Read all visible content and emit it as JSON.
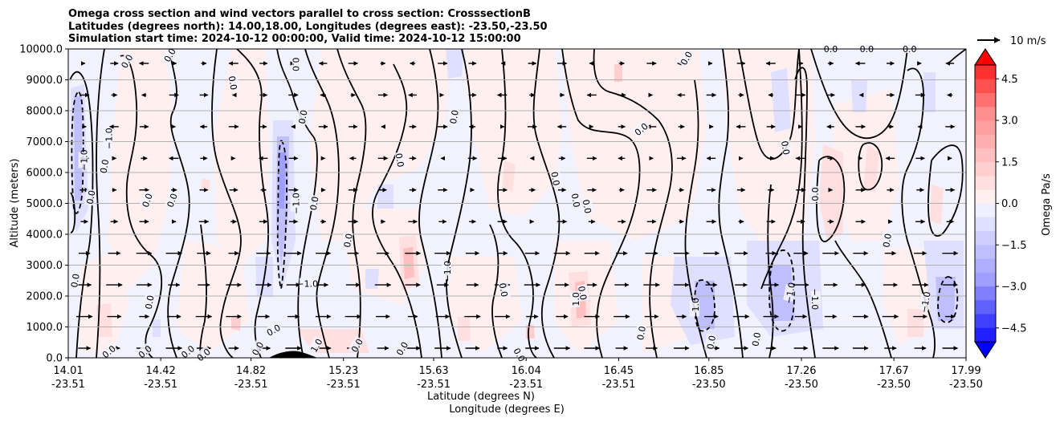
{
  "chart_data": {
    "type": "heatmap",
    "title_lines": [
      "Omega cross section and wind vectors parallel to cross section: CrosssectionB",
      "Latitudes (degrees north): 14.00,18.00, Longitudes (degrees east): -23.50,-23.50",
      "Simulation start time: 2024-10-12 00:00:00, Valid time: 2024-10-12 15:00:00"
    ],
    "ylabel": "Altitude (meters)",
    "xlabel_lines": [
      "Latitude (degrees N)",
      "Longitude (degrees E)"
    ],
    "ylim": [
      0,
      10000
    ],
    "y_ticks": [
      "0.0",
      "1000.0",
      "2000.0",
      "3000.0",
      "4000.0",
      "5000.0",
      "6000.0",
      "7000.0",
      "8000.0",
      "9000.0",
      "10000.0"
    ],
    "x_ticks": [
      {
        "lat": "14.01",
        "lon": "-23.51"
      },
      {
        "lat": "14.42",
        "lon": "-23.51"
      },
      {
        "lat": "14.82",
        "lon": "-23.51"
      },
      {
        "lat": "15.23",
        "lon": "-23.51"
      },
      {
        "lat": "15.63",
        "lon": "-23.51"
      },
      {
        "lat": "16.04",
        "lon": "-23.51"
      },
      {
        "lat": "16.45",
        "lon": "-23.51"
      },
      {
        "lat": "16.85",
        "lon": "-23.50"
      },
      {
        "lat": "17.26",
        "lon": "-23.50"
      },
      {
        "lat": "17.67",
        "lon": "-23.50"
      },
      {
        "lat": "17.99",
        "lon": "-23.50"
      }
    ],
    "xlim": [
      14.01,
      17.99
    ],
    "grid": "horizontal",
    "colorbar": {
      "label": "Omega Pa/s",
      "min": -5.0,
      "max": 5.0,
      "step": 0.5,
      "ticks": [
        "4.5",
        "3.0",
        "1.5",
        "0.0",
        "−1.5",
        "−3.0",
        "−4.5"
      ],
      "colors_positive": [
        "#ffefef",
        "#ffdfdf",
        "#ffcfcf",
        "#ffbfbf",
        "#ffafaf",
        "#ff9f9f",
        "#ff8f8f",
        "#ff7070",
        "#ff5050",
        "#ff3030"
      ],
      "colors_negative": [
        "#efefff",
        "#dfdfff",
        "#cfcfff",
        "#bfbfff",
        "#afafff",
        "#9f9fff",
        "#8080ff",
        "#6060ff",
        "#4040ff",
        "#2020ff"
      ],
      "over_color": "#ff0000",
      "under_color": "#0000ff"
    },
    "quiver_key": "10 m/s",
    "contour_labels": [
      {
        "text": "0.0",
        "lat": 14.27,
        "alt": 9600,
        "rot": -60
      },
      {
        "text": "0.0",
        "lat": 14.46,
        "alt": 9800,
        "rot": -60
      },
      {
        "text": "0.0",
        "lat": 15.02,
        "alt": 9500,
        "rot": 90
      },
      {
        "text": "0.0",
        "lat": 14.74,
        "alt": 8900,
        "rot": 80
      },
      {
        "text": "0.0",
        "lat": 15.05,
        "alt": 7800,
        "rot": -80
      },
      {
        "text": "0.0",
        "lat": 15.72,
        "alt": 7800,
        "rot": -80
      },
      {
        "text": "0.0",
        "lat": 16.55,
        "alt": 7400,
        "rot": -40
      },
      {
        "text": "0.0",
        "lat": 16.75,
        "alt": 9700,
        "rot": -60
      },
      {
        "text": "0.0",
        "lat": 17.39,
        "alt": 10000,
        "rot": 0
      },
      {
        "text": "0.0",
        "lat": 17.55,
        "alt": 10000,
        "rot": 0
      },
      {
        "text": "0.0",
        "lat": 17.74,
        "alt": 10000,
        "rot": 0
      },
      {
        "text": "0.0",
        "lat": 17.19,
        "alt": 6800,
        "rot": 80
      },
      {
        "text": "0.0",
        "lat": 15.48,
        "alt": 6400,
        "rot": 80
      },
      {
        "text": "0.0",
        "lat": 16.17,
        "alt": 5800,
        "rot": 80
      },
      {
        "text": "0.0",
        "lat": 14.17,
        "alt": 6200,
        "rot": -80
      },
      {
        "text": "0.0",
        "lat": 14.11,
        "alt": 5200,
        "rot": -80
      },
      {
        "text": "0.0",
        "lat": 14.36,
        "alt": 5100,
        "rot": -70
      },
      {
        "text": "0.0",
        "lat": 14.47,
        "alt": 5100,
        "rot": -70
      },
      {
        "text": "0.0",
        "lat": 15.1,
        "alt": 5000,
        "rot": -80
      },
      {
        "text": "0.0",
        "lat": 16.26,
        "alt": 5100,
        "rot": 80
      },
      {
        "text": "0.0",
        "lat": 16.31,
        "alt": 4900,
        "rot": 80
      },
      {
        "text": "0.0",
        "lat": 17.32,
        "alt": 5300,
        "rot": -90
      },
      {
        "text": "0.0",
        "lat": 15.25,
        "alt": 3800,
        "rot": -80
      },
      {
        "text": "0.0",
        "lat": 17.64,
        "alt": 3800,
        "rot": -80
      },
      {
        "text": "0.0",
        "lat": 14.04,
        "alt": 2500,
        "rot": -80
      },
      {
        "text": "0.0",
        "lat": 14.37,
        "alt": 1800,
        "rot": -80
      },
      {
        "text": "0.0",
        "lat": 15.94,
        "alt": 2200,
        "rot": 80
      },
      {
        "text": "0.0",
        "lat": 16.29,
        "alt": 2100,
        "rot": 80
      },
      {
        "text": "0.0",
        "lat": 16.55,
        "alt": 800,
        "rot": -80
      },
      {
        "text": "0.0",
        "lat": 16.86,
        "alt": 500,
        "rot": -80
      },
      {
        "text": "0.0",
        "lat": 17.06,
        "alt": 600,
        "rot": -80
      },
      {
        "text": "0.0",
        "lat": 14.19,
        "alt": 200,
        "rot": -40
      },
      {
        "text": "0.0",
        "lat": 14.35,
        "alt": 200,
        "rot": -40
      },
      {
        "text": "0.0",
        "lat": 14.54,
        "alt": 200,
        "rot": -40
      },
      {
        "text": "0.0",
        "lat": 14.61,
        "alt": 100,
        "rot": -40
      },
      {
        "text": "0.0",
        "lat": 14.85,
        "alt": 300,
        "rot": -60
      },
      {
        "text": "0.0",
        "lat": 14.92,
        "alt": 900,
        "rot": -30
      },
      {
        "text": "0.0",
        "lat": 15.29,
        "alt": 400,
        "rot": -60
      },
      {
        "text": "0.0",
        "lat": 16.01,
        "alt": 100,
        "rot": 60
      },
      {
        "text": "0.0",
        "lat": 15.49,
        "alt": 300,
        "rot": -60
      },
      {
        "text": "−1.0",
        "lat": 14.19,
        "alt": 7100,
        "rot": -90
      },
      {
        "text": "−1.0",
        "lat": 14.08,
        "alt": 6400,
        "rot": -90
      },
      {
        "text": "−1.0",
        "lat": 15.02,
        "alt": 5000,
        "rot": -90
      },
      {
        "text": "−1.0",
        "lat": 15.07,
        "alt": 2400,
        "rot": 0
      },
      {
        "text": "−1.0",
        "lat": 15.69,
        "alt": 2800,
        "rot": -90
      },
      {
        "text": "1.0",
        "lat": 16.26,
        "alt": 1900,
        "rot": -90
      },
      {
        "text": "−1.0",
        "lat": 16.79,
        "alt": 1600,
        "rot": -90
      },
      {
        "text": "−1.0",
        "lat": 17.21,
        "alt": 2100,
        "rot": -80
      },
      {
        "text": "−1.0",
        "lat": 17.32,
        "alt": 1900,
        "rot": 90
      },
      {
        "text": "−1.0",
        "lat": 17.81,
        "alt": 1800,
        "rot": -80
      },
      {
        "text": "1.0",
        "lat": 15.11,
        "alt": 400,
        "rot": -60
      }
    ]
  }
}
